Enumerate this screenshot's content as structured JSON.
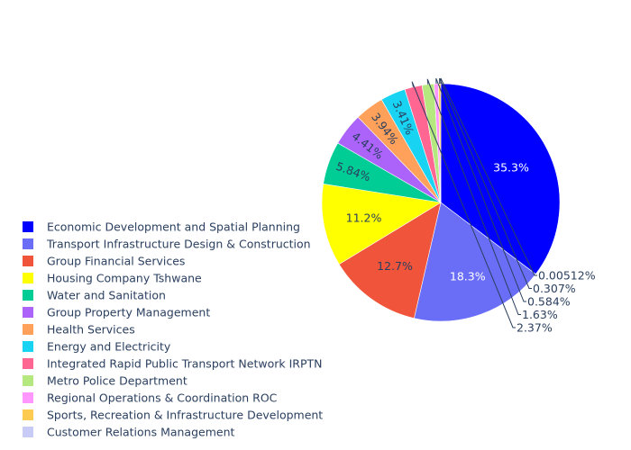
{
  "chart_data": {
    "type": "pie",
    "title": "",
    "legend_placement": "bottom-left",
    "slices": [
      {
        "label": "Economic Development and Spatial Planning",
        "percent": 35.3,
        "text": "35.3%",
        "color": "#0000ff",
        "label_pos": "inside",
        "text_color": "#ffffff"
      },
      {
        "label": "Transport Infrastructure Design & Construction",
        "percent": 18.3,
        "text": "18.3%",
        "color": "#6a6ef7",
        "label_pos": "inside",
        "text_color": "#ffffff"
      },
      {
        "label": "Group Financial Services",
        "percent": 12.7,
        "text": "12.7%",
        "color": "#f0553b",
        "label_pos": "inside",
        "text_color": "#2a3f5f"
      },
      {
        "label": "Housing Company Tshwane",
        "percent": 11.2,
        "text": "11.2%",
        "color": "#ffff00",
        "label_pos": "inside",
        "text_color": "#2a3f5f"
      },
      {
        "label": "Water and Sanitation",
        "percent": 5.84,
        "text": "5.84%",
        "color": "#00cc96",
        "label_pos": "inside",
        "text_color": "#2a3f5f"
      },
      {
        "label": "Group Property Management",
        "percent": 4.41,
        "text": "4.41%",
        "color": "#ab63fa",
        "label_pos": "inside",
        "text_color": "#2a3f5f"
      },
      {
        "label": "Health Services",
        "percent": 3.94,
        "text": "3.94%",
        "color": "#ffa15a",
        "label_pos": "inside",
        "text_color": "#2a3f5f"
      },
      {
        "label": "Energy and Electricity",
        "percent": 3.41,
        "text": "3.41%",
        "color": "#19d3f3",
        "label_pos": "inside",
        "text_color": "#2a3f5f"
      },
      {
        "label": "Integrated Rapid Public Transport Network IRPTN",
        "percent": 2.37,
        "text": "2.37%",
        "color": "#ff6692",
        "label_pos": "outside",
        "text_color": "#2a3f5f"
      },
      {
        "label": "Metro Police Department",
        "percent": 1.63,
        "text": "1.63%",
        "color": "#b6e880",
        "label_pos": "outside",
        "text_color": "#2a3f5f"
      },
      {
        "label": "Regional Operations & Coordination ROC",
        "percent": 0.584,
        "text": "0.584%",
        "color": "#ff97ff",
        "label_pos": "outside",
        "text_color": "#2a3f5f"
      },
      {
        "label": "Sports, Recreation & Infrastructure Development",
        "percent": 0.307,
        "text": "0.307%",
        "color": "#fecb52",
        "label_pos": "outside",
        "text_color": "#2a3f5f"
      },
      {
        "label": "Customer Relations Management",
        "percent": 0.00512,
        "text": "0.00512%",
        "color": "#c9cbf7",
        "label_pos": "outside",
        "text_color": "#2a3f5f"
      }
    ]
  }
}
